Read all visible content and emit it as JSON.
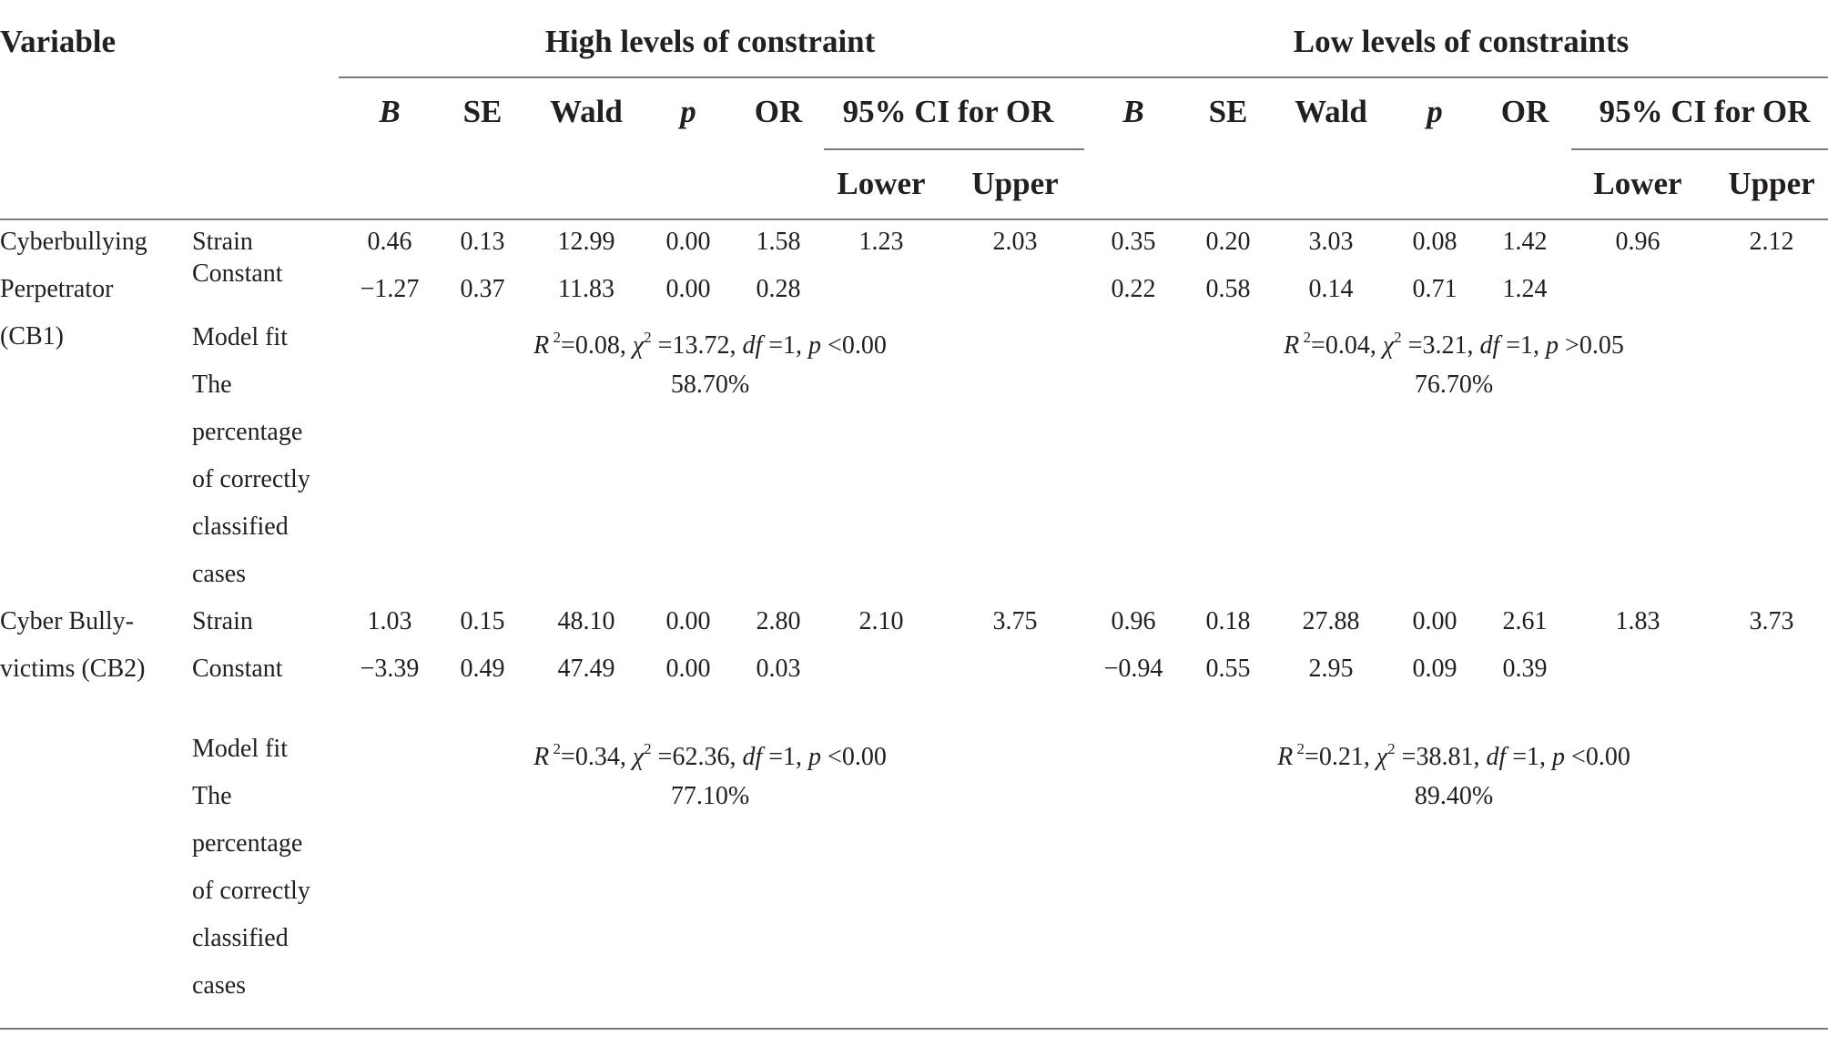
{
  "header": {
    "variable": "Variable",
    "groups": [
      "High levels of constraint",
      "Low levels of constraints"
    ],
    "columns": [
      "B",
      "SE",
      "Wald",
      "p",
      "OR",
      "95% CI for OR"
    ],
    "ci_sub": [
      "Lower",
      "Upper"
    ]
  },
  "blocks": [
    {
      "variable_lines": [
        "Cyberbullying",
        "Perpetrator",
        "(CB1)"
      ],
      "rows": [
        {
          "label": "Strain",
          "high": [
            "0.46",
            "0.13",
            "12.99",
            "0.00",
            "1.58",
            "1.23",
            "2.03"
          ],
          "low": [
            "0.35",
            "0.20",
            "3.03",
            "0.08",
            "1.42",
            "0.96",
            "2.12"
          ]
        },
        {
          "label": "Constant",
          "high": [
            "−1.27",
            "0.37",
            "11.83",
            "0.00",
            "0.28",
            "",
            ""
          ],
          "low": [
            "0.22",
            "0.58",
            "0.14",
            "0.71",
            "1.24",
            "",
            ""
          ]
        }
      ],
      "model_fit_label": "Model fit",
      "model_fit_high": {
        "r2": "=0.08,",
        "chi2": "=13.72,",
        "df": "=1,",
        "p_op": "<",
        "p_val": "0.00"
      },
      "model_fit_low": {
        "r2": "=0.04,",
        "chi2": "=3.21,",
        "df": "=1,",
        "p_op": ">",
        "p_val": "0.05"
      },
      "pct_label_lines": [
        "The",
        "percentage",
        "of correctly",
        "classified",
        "cases"
      ],
      "pct_high": "58.70%",
      "pct_low": "76.70%"
    },
    {
      "variable_lines": [
        "Cyber Bully-",
        "victims (CB2)"
      ],
      "rows": [
        {
          "label": "Strain",
          "high": [
            "1.03",
            "0.15",
            "48.10",
            "0.00",
            "2.80",
            "2.10",
            "3.75"
          ],
          "low": [
            "0.96",
            "0.18",
            "27.88",
            "0.00",
            "2.61",
            "1.83",
            "3.73"
          ]
        },
        {
          "label": "Constant",
          "high": [
            "−3.39",
            "0.49",
            "47.49",
            "0.00",
            "0.03",
            "",
            ""
          ],
          "low": [
            "−0.94",
            "0.55",
            "2.95",
            "0.09",
            "0.39",
            "",
            ""
          ]
        }
      ],
      "model_fit_label": "Model fit",
      "model_fit_high": {
        "r2": "=0.34,",
        "chi2": "=62.36,",
        "df": "=1,",
        "p_op": "<",
        "p_val": "0.00"
      },
      "model_fit_low": {
        "r2": "=0.21,",
        "chi2": "=38.81,",
        "df": "=1,",
        "p_op": "<",
        "p_val": "0.00"
      },
      "pct_label_lines": [
        "The",
        "percentage",
        "of correctly",
        "classified",
        "cases"
      ],
      "pct_high": "77.10%",
      "pct_low": "89.40%"
    }
  ],
  "symbols": {
    "R": "R",
    "two": "2",
    "chi": "χ",
    "df": "df",
    "p": "p"
  }
}
